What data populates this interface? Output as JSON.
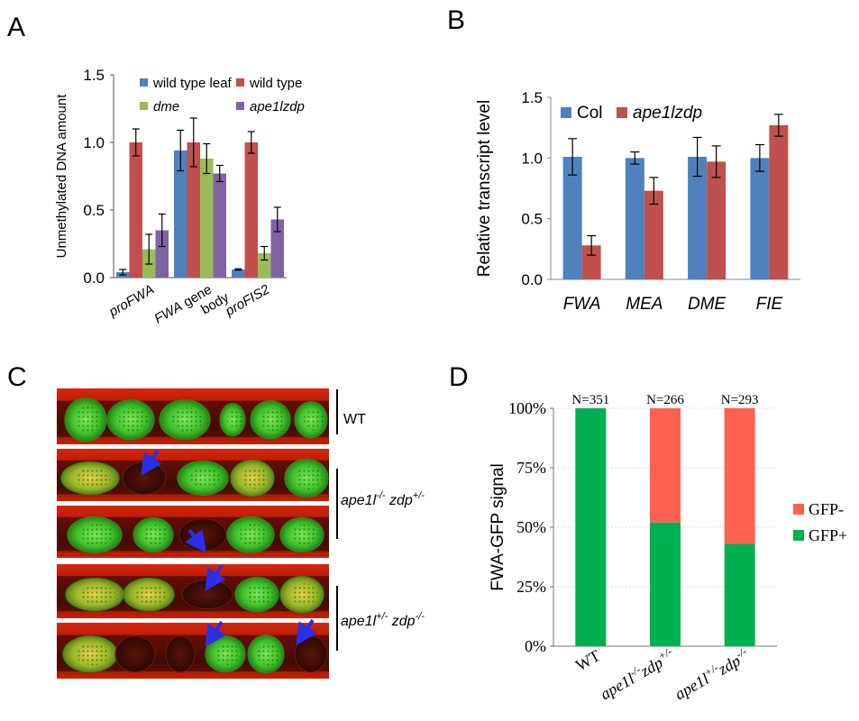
{
  "panels": {
    "a": {
      "letter": "A"
    },
    "b": {
      "letter": "B"
    },
    "c": {
      "letter": "C"
    },
    "d": {
      "letter": "D"
    }
  },
  "colors": {
    "blue": "#4f81bd",
    "red": "#c0504d",
    "green": "#9bbb59",
    "purple": "#8064a2",
    "gfp_minus": "#ff6150",
    "gfp_plus": "#00b050",
    "arrow": "#2a2fe8"
  },
  "chart_data": [
    {
      "panel": "A",
      "type": "bar",
      "ylabel": "Unmethylated DNA amount",
      "xlabel": "",
      "ylim": [
        0,
        1.5
      ],
      "yticks": [
        "0.0",
        "0.5",
        "1.0",
        "1.5"
      ],
      "categories": [
        [
          "proFWA"
        ],
        [
          "FWA gene",
          "body"
        ],
        [
          "proFIS2"
        ]
      ],
      "legend_position": "top",
      "series": [
        {
          "name": "wild type leaf",
          "italic": false,
          "color": "#4f81bd",
          "values": [
            0.04,
            0.94,
            0.06
          ],
          "errors": [
            0.02,
            0.15,
            0.005
          ]
        },
        {
          "name": "wild type",
          "italic": false,
          "color": "#c0504d",
          "values": [
            1.0,
            1.0,
            1.0
          ],
          "errors": [
            0.1,
            0.18,
            0.08
          ]
        },
        {
          "name": "dme",
          "italic": true,
          "color": "#9bbb59",
          "values": [
            0.21,
            0.88,
            0.18
          ],
          "errors": [
            0.11,
            0.11,
            0.05
          ]
        },
        {
          "name": "ape1lzdp",
          "italic": true,
          "color": "#8064a2",
          "values": [
            0.35,
            0.77,
            0.43
          ],
          "errors": [
            0.12,
            0.06,
            0.09
          ]
        }
      ]
    },
    {
      "panel": "B",
      "type": "bar",
      "ylabel": "Relative transcript level",
      "xlabel": "",
      "ylim": [
        0,
        1.5
      ],
      "yticks": [
        "0.0",
        "0.5",
        "1.0",
        "1.5"
      ],
      "categories": [
        "FWA",
        "MEA",
        "DME",
        "FIE"
      ],
      "legend_position": "top",
      "series": [
        {
          "name": "Col",
          "italic": false,
          "color": "#4f81bd",
          "values": [
            1.01,
            1.0,
            1.01,
            1.0
          ],
          "errors": [
            0.15,
            0.05,
            0.16,
            0.11
          ]
        },
        {
          "name": "ape1lzdp",
          "italic": true,
          "color": "#c0504d",
          "values": [
            0.28,
            0.73,
            0.97,
            1.27
          ],
          "errors": [
            0.08,
            0.11,
            0.13,
            0.09
          ]
        }
      ]
    },
    {
      "panel": "D",
      "type": "bar",
      "stacked": true,
      "ylabel": "FWA-GFP signal",
      "xlabel": "",
      "ylim": [
        0,
        100
      ],
      "yticks": [
        "0%",
        "25%",
        "50%",
        "75%",
        "100%"
      ],
      "categories": [
        {
          "base": "WT",
          "sup": ""
        },
        {
          "base": "ape1l",
          "sup": "-/-",
          "base2": "zdp",
          "sup2": "+/-"
        },
        {
          "base": "ape1l",
          "sup": "+/-",
          "base2": "zdp",
          "sup2": "-/-"
        }
      ],
      "annotations": [
        "N=351",
        "N=266",
        "N=293"
      ],
      "legend_position": "right",
      "series": [
        {
          "name": "GFP+",
          "color": "#00b050",
          "values": [
            100,
            52,
            43
          ]
        },
        {
          "name": "GFP-",
          "color": "#ff6150",
          "values": [
            0,
            48,
            57
          ]
        }
      ]
    }
  ],
  "micrograph": {
    "labels": [
      {
        "base": "WT"
      },
      {
        "base": "ape1l",
        "sup": "-/-",
        "base2": " zdp",
        "sup2": "+/-"
      },
      {
        "base": "ape1l",
        "sup": "+/-",
        "base2": " zdp",
        "sup2": "-/-"
      }
    ]
  }
}
